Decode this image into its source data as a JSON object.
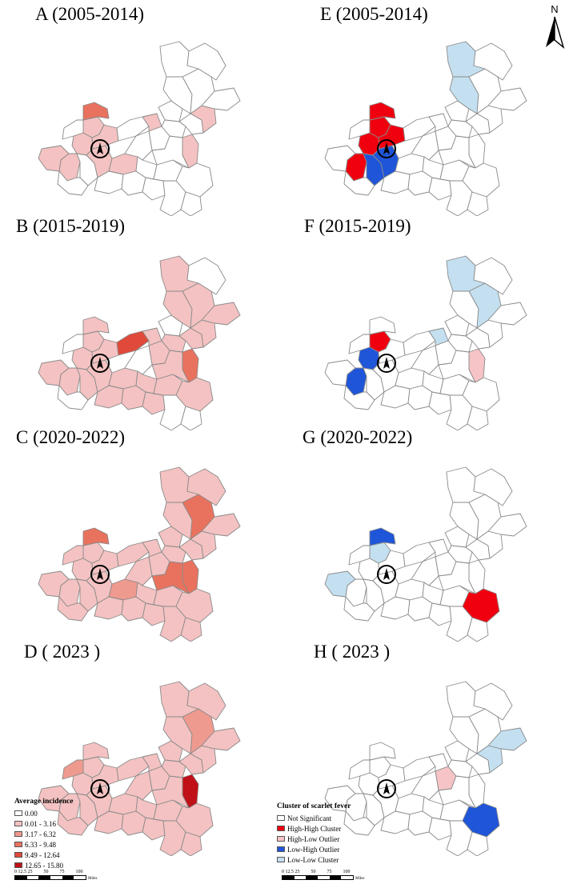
{
  "colors": {
    "inc0": "#ffffff",
    "inc1": "#f4c2c2",
    "inc2": "#ef9a8f",
    "inc3": "#e9725e",
    "inc4": "#df4a3a",
    "inc5": "#c01018",
    "ns": "#ffffff",
    "hh": "#f0000f",
    "hl": "#f6c4c6",
    "lh": "#1f55d8",
    "ll": "#c4e0f0",
    "border": "#8a8a8a"
  },
  "panels": [
    {
      "id": "A",
      "title": "A (2005-2014)",
      "type": "incidence",
      "regions": [
        "inc1",
        "inc1",
        "inc0",
        "inc1",
        "inc0",
        "inc1",
        "inc3",
        "inc1",
        "inc1",
        "inc0",
        "inc1",
        "inc1",
        "inc0",
        "inc0",
        "inc0",
        "inc0",
        "inc0",
        "inc0",
        "inc0",
        "inc0",
        "inc1",
        "inc0",
        "inc0",
        "inc0",
        "inc0",
        "inc0",
        "inc0",
        "inc0",
        "inc1",
        "inc0",
        "inc0",
        "inc0",
        "inc0",
        "inc0"
      ]
    },
    {
      "id": "E",
      "title": "E (2005-2014)",
      "type": "cluster",
      "regions": [
        "hh",
        "hh",
        "ns",
        "hh",
        "lh",
        "lh",
        "hh",
        "hh",
        "ns",
        "ns",
        "ns",
        "ns",
        "ns",
        "ns",
        "ns",
        "ns",
        "ns",
        "ns",
        "ns",
        "ns",
        "ns",
        "ns",
        "ns",
        "ns",
        "ns",
        "ns",
        "ns",
        "ns",
        "ns",
        "ns",
        "ll",
        "ns",
        "ll",
        "ns"
      ]
    },
    {
      "id": "B",
      "title": "B (2015-2019)",
      "type": "incidence",
      "regions": [
        "inc1",
        "inc1",
        "inc0",
        "inc1",
        "inc1",
        "inc1",
        "inc1",
        "inc1",
        "inc1",
        "inc4",
        "inc1",
        "inc1",
        "inc1",
        "inc0",
        "inc1",
        "inc0",
        "inc1",
        "inc1",
        "inc1",
        "inc1",
        "inc3",
        "inc1",
        "inc1",
        "inc0",
        "inc0",
        "inc0",
        "inc1",
        "inc1",
        "inc1",
        "inc1",
        "inc1",
        "inc1",
        "inc1",
        "inc0"
      ]
    },
    {
      "id": "F",
      "title": "F (2015-2019)",
      "type": "cluster",
      "regions": [
        "lh",
        "hh",
        "ns",
        "lh",
        "ns",
        "ns",
        "ns",
        "ns",
        "ns",
        "ns",
        "ll",
        "ns",
        "ns",
        "ns",
        "ns",
        "ns",
        "ns",
        "ns",
        "ns",
        "ns",
        "hl",
        "ns",
        "ns",
        "ns",
        "ns",
        "ns",
        "ns",
        "ns",
        "ns",
        "ns",
        "ns",
        "ll",
        "ll",
        "ns"
      ]
    },
    {
      "id": "C",
      "title": "C (2020-2022)",
      "type": "incidence",
      "regions": [
        "inc1",
        "inc1",
        "inc1",
        "inc1",
        "inc1",
        "inc1",
        "inc3",
        "inc1",
        "inc1",
        "inc1",
        "inc1",
        "inc2",
        "inc1",
        "inc1",
        "inc1",
        "inc1",
        "inc1",
        "inc1",
        "inc1",
        "inc1",
        "inc3",
        "inc3",
        "inc1",
        "inc1",
        "inc1",
        "inc1",
        "inc1",
        "inc1",
        "inc1",
        "inc1",
        "inc1",
        "inc3",
        "inc1",
        "inc1"
      ]
    },
    {
      "id": "G",
      "title": "G (2020-2022)",
      "type": "cluster",
      "regions": [
        "ns",
        "ll",
        "ns",
        "ns",
        "ns",
        "ns",
        "lh",
        "ns",
        "ll",
        "ns",
        "ns",
        "ns",
        "ns",
        "ns",
        "ns",
        "ns",
        "ns",
        "ns",
        "ns",
        "ns",
        "ns",
        "ns",
        "hh",
        "ns",
        "ns",
        "ns",
        "ns",
        "ns",
        "ns",
        "ns",
        "ns",
        "ns",
        "ns",
        "ns"
      ]
    },
    {
      "id": "D",
      "title": "D ( 2023 )",
      "type": "incidence",
      "regions": [
        "inc1",
        "inc1",
        "inc2",
        "inc1",
        "inc1",
        "inc1",
        "inc1",
        "inc1",
        "inc1",
        "inc1",
        "inc1",
        "inc1",
        "inc1",
        "inc1",
        "inc1",
        "inc1",
        "inc1",
        "inc1",
        "inc1",
        "inc1",
        "inc5",
        "inc1",
        "inc1",
        "inc1",
        "inc1",
        "inc1",
        "inc1",
        "inc1",
        "inc1",
        "inc1",
        "inc1",
        "inc2",
        "inc1",
        "inc1"
      ]
    },
    {
      "id": "H",
      "title": "H ( 2023 )",
      "type": "cluster",
      "regions": [
        "ns",
        "ns",
        "ns",
        "ns",
        "ns",
        "ns",
        "ns",
        "ns",
        "ns",
        "ns",
        "ns",
        "ns",
        "hl",
        "ns",
        "ns",
        "ns",
        "ns",
        "ns",
        "ns",
        "ns",
        "ns",
        "ns",
        "lh",
        "ns",
        "ns",
        "ns",
        "ns",
        "ns",
        "ll",
        "ll",
        "ns",
        "ns",
        "ns",
        "ns"
      ]
    }
  ],
  "north": {
    "label": "N"
  },
  "legend_incidence": {
    "title": "Average incidence",
    "items": [
      {
        "label": "0.00",
        "color": "inc0"
      },
      {
        "label": "0.01 - 3.16",
        "color": "inc1"
      },
      {
        "label": "3.17 - 6.32",
        "color": "inc2"
      },
      {
        "label": "6.33 - 9.48",
        "color": "inc3"
      },
      {
        "label": "9.49 - 12.64",
        "color": "inc4"
      },
      {
        "label": "12.65 - 15.80",
        "color": "inc5"
      }
    ]
  },
  "legend_cluster": {
    "title": "Cluster of scarlet fever",
    "items": [
      {
        "label": "Not Significant",
        "color": "ns"
      },
      {
        "label": "High-High Cluster",
        "color": "hh"
      },
      {
        "label": "High-Low Outlier",
        "color": "hl"
      },
      {
        "label": "Low-High Outlier",
        "color": "lh"
      },
      {
        "label": "Low-Low Cluster",
        "color": "ll"
      }
    ]
  },
  "scalebar": {
    "ticks": [
      "0 12.5 25",
      "50",
      "75",
      "100"
    ],
    "unit": "Miles"
  }
}
